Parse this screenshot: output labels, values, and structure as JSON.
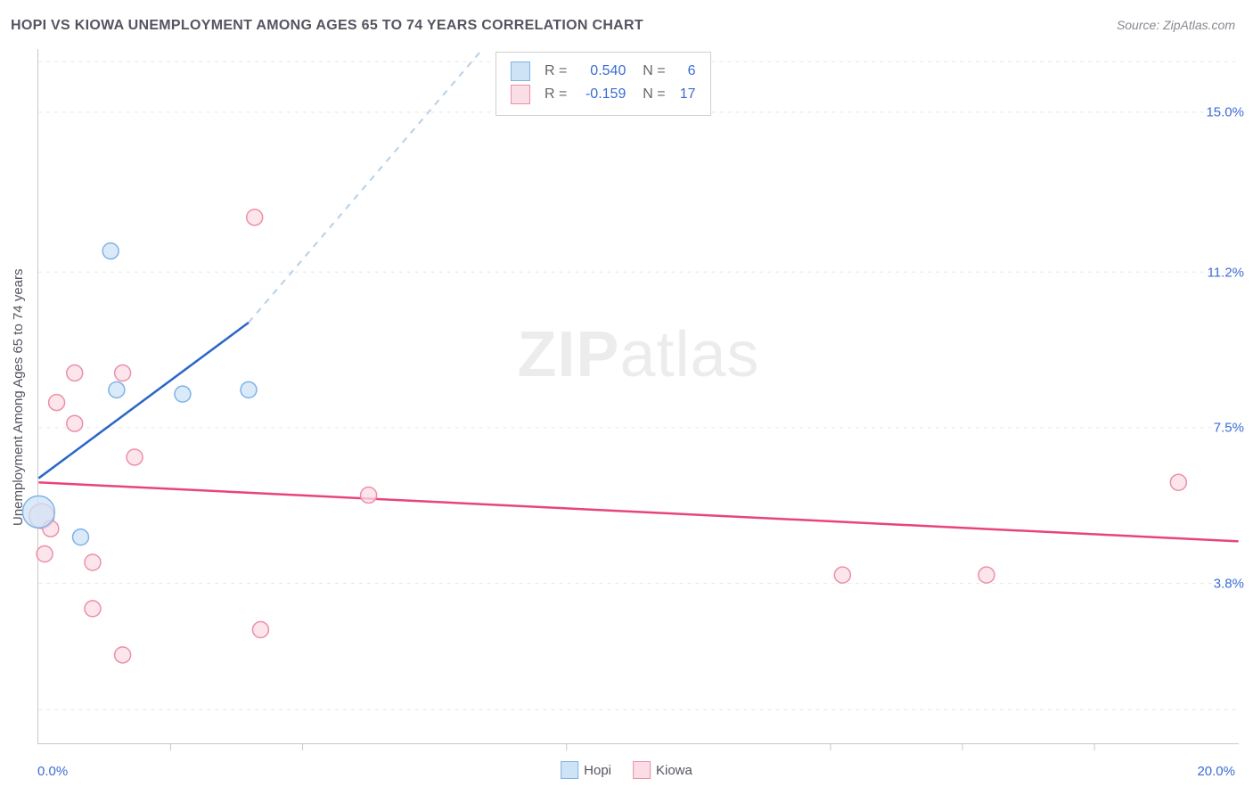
{
  "title": "HOPI VS KIOWA UNEMPLOYMENT AMONG AGES 65 TO 74 YEARS CORRELATION CHART",
  "source": "Source: ZipAtlas.com",
  "watermark_prefix": "ZIP",
  "watermark_suffix": "atlas",
  "chart": {
    "type": "scatter",
    "ylabel": "Unemployment Among Ages 65 to 74 years",
    "xlim": [
      0,
      20.0
    ],
    "ylim": [
      0,
      16.5
    ],
    "x_origin_label": "0.0%",
    "x_max_label": "20.0%",
    "y_tick_labels": [
      {
        "v": 3.8,
        "label": "3.8%"
      },
      {
        "v": 7.5,
        "label": "7.5%"
      },
      {
        "v": 11.2,
        "label": "11.2%"
      },
      {
        "v": 15.0,
        "label": "15.0%"
      }
    ],
    "x_ticks": [
      2.2,
      4.4,
      8.8,
      13.2,
      15.4,
      17.6
    ],
    "gridlines_y": [
      0.8,
      3.8,
      7.5,
      11.2,
      15.0,
      16.2
    ],
    "background_color": "#ffffff",
    "grid_color": "#e6e6e6",
    "axis_color": "#c8c8c8",
    "label_color": "#555560",
    "tick_label_color": "#3b6cd4",
    "series": {
      "hopi": {
        "label": "Hopi",
        "fill": "#cfe3f7",
        "stroke": "#7fb2e6",
        "line_color": "#2a66c9",
        "dash_color": "#b9cfe6",
        "r_stat": "0.540",
        "n_stat": "6",
        "marker_r": 9,
        "points": [
          {
            "x": 0.0,
            "y": 5.5,
            "r": 18
          },
          {
            "x": 0.7,
            "y": 4.9,
            "r": 9
          },
          {
            "x": 1.3,
            "y": 8.4,
            "r": 9
          },
          {
            "x": 1.2,
            "y": 11.7,
            "r": 9
          },
          {
            "x": 2.4,
            "y": 8.3,
            "r": 9
          },
          {
            "x": 3.5,
            "y": 8.4,
            "r": 9
          }
        ],
        "trend": {
          "x1": 0.0,
          "y1": 6.3,
          "x2": 3.5,
          "y2": 10.0
        },
        "trend_dash": {
          "x1": 3.5,
          "y1": 10.0,
          "x2": 7.4,
          "y2": 16.5
        }
      },
      "kiowa": {
        "label": "Kiowa",
        "fill": "#fbdde5",
        "stroke": "#ec8fa8",
        "line_color": "#e8447a",
        "r_stat": "-0.159",
        "n_stat": "17",
        "marker_r": 9,
        "points": [
          {
            "x": 0.05,
            "y": 5.4,
            "r": 14
          },
          {
            "x": 0.1,
            "y": 4.5,
            "r": 9
          },
          {
            "x": 0.2,
            "y": 5.1,
            "r": 9
          },
          {
            "x": 0.3,
            "y": 8.1,
            "r": 9
          },
          {
            "x": 0.6,
            "y": 7.6,
            "r": 9
          },
          {
            "x": 0.6,
            "y": 8.8,
            "r": 9
          },
          {
            "x": 0.9,
            "y": 4.3,
            "r": 9
          },
          {
            "x": 0.9,
            "y": 3.2,
            "r": 9
          },
          {
            "x": 1.4,
            "y": 8.8,
            "r": 9
          },
          {
            "x": 1.4,
            "y": 2.1,
            "r": 9
          },
          {
            "x": 1.6,
            "y": 6.8,
            "r": 9
          },
          {
            "x": 3.7,
            "y": 2.7,
            "r": 9
          },
          {
            "x": 3.6,
            "y": 12.5,
            "r": 9
          },
          {
            "x": 5.5,
            "y": 5.9,
            "r": 9
          },
          {
            "x": 13.4,
            "y": 4.0,
            "r": 9
          },
          {
            "x": 15.8,
            "y": 4.0,
            "r": 9
          },
          {
            "x": 19.0,
            "y": 6.2,
            "r": 9
          }
        ],
        "trend": {
          "x1": 0.0,
          "y1": 6.2,
          "x2": 20.0,
          "y2": 4.8
        }
      }
    }
  },
  "bottom_legend_label_hopi": "Hopi",
  "bottom_legend_label_kiowa": "Kiowa"
}
